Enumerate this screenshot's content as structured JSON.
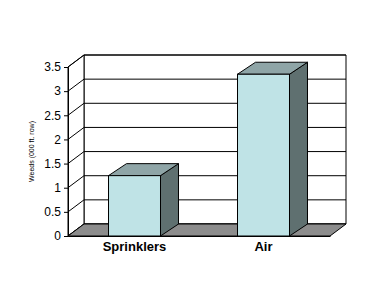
{
  "chart_data": {
    "type": "bar",
    "y_label": "Weeds (000 ft. row)",
    "categories": [
      "Sprinklers",
      "Air"
    ],
    "values": [
      1.25,
      3.35
    ],
    "color": "#bfe3e6",
    "ylim": [
      0,
      3.5
    ],
    "yticks": [
      0,
      0.5,
      1,
      1.5,
      2,
      2.5,
      3,
      3.5
    ],
    "grid": true
  }
}
